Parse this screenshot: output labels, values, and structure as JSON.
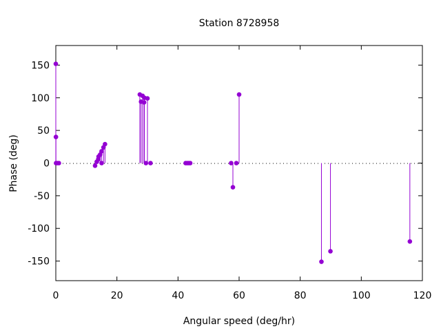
{
  "chart_data": {
    "type": "scatter",
    "style": "impulses-with-points",
    "title": "Station 8728958",
    "xlabel": "Angular speed (deg/hr)",
    "ylabel": "Phase (deg)",
    "xlim": [
      0,
      120
    ],
    "ylim": [
      -180,
      180
    ],
    "xticks": [
      0,
      20,
      40,
      60,
      80,
      100,
      120
    ],
    "yticks": [
      -150,
      -100,
      -50,
      0,
      50,
      100,
      150
    ],
    "grid": false,
    "zero_line": true,
    "series_color": "#9400d3",
    "points": [
      {
        "x": 0.0,
        "y": 152
      },
      {
        "x": 0.04,
        "y": 40
      },
      {
        "x": 0.08,
        "y": 0
      },
      {
        "x": 0.5,
        "y": 0
      },
      {
        "x": 1.0,
        "y": 0
      },
      {
        "x": 12.85,
        "y": -4
      },
      {
        "x": 13.4,
        "y": 2
      },
      {
        "x": 13.9,
        "y": 6
      },
      {
        "x": 14.0,
        "y": 10
      },
      {
        "x": 14.5,
        "y": 13
      },
      {
        "x": 14.96,
        "y": 18
      },
      {
        "x": 15.0,
        "y": 0
      },
      {
        "x": 15.6,
        "y": 24
      },
      {
        "x": 16.1,
        "y": 29
      },
      {
        "x": 27.5,
        "y": 105
      },
      {
        "x": 27.9,
        "y": 94
      },
      {
        "x": 28.4,
        "y": 103
      },
      {
        "x": 28.9,
        "y": 93
      },
      {
        "x": 29.0,
        "y": 100
      },
      {
        "x": 29.5,
        "y": 0
      },
      {
        "x": 30.0,
        "y": 99
      },
      {
        "x": 31.0,
        "y": 0
      },
      {
        "x": 42.5,
        "y": 0
      },
      {
        "x": 43.0,
        "y": 0
      },
      {
        "x": 43.5,
        "y": 0
      },
      {
        "x": 44.0,
        "y": 0
      },
      {
        "x": 57.4,
        "y": 0
      },
      {
        "x": 57.97,
        "y": -37
      },
      {
        "x": 59.1,
        "y": 0
      },
      {
        "x": 60.0,
        "y": 105
      },
      {
        "x": 86.95,
        "y": -151
      },
      {
        "x": 89.9,
        "y": -135
      },
      {
        "x": 115.9,
        "y": -120
      }
    ]
  }
}
